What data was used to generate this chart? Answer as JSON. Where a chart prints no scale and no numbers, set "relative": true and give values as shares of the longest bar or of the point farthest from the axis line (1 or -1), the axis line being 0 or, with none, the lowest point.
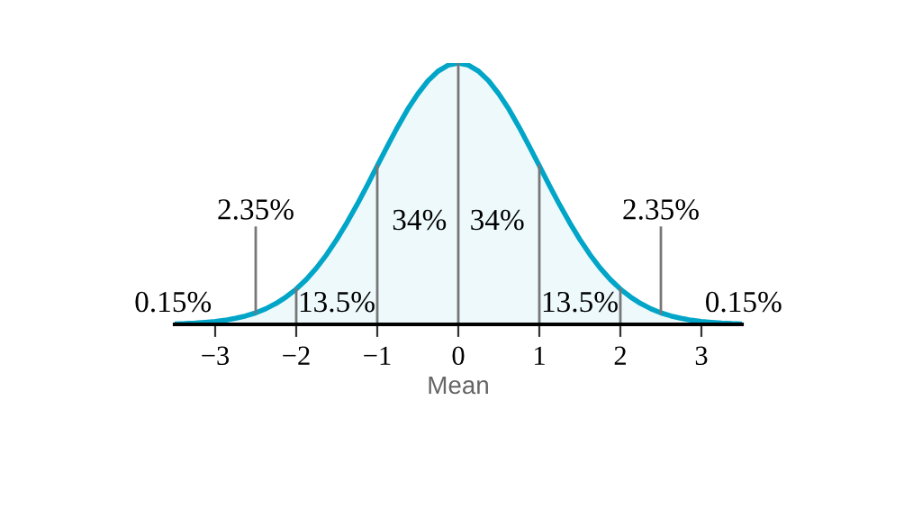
{
  "chart_data": {
    "type": "area",
    "relative": true,
    "xlabel": "Mean",
    "color": "#00a5c8",
    "x": [
      -3.5,
      -3.375,
      -3.25,
      -3.125,
      -3,
      -2.875,
      -2.75,
      -2.625,
      -2.5,
      -2.375,
      -2.25,
      -2.125,
      -2,
      -1.875,
      -1.75,
      -1.625,
      -1.5,
      -1.375,
      -1.25,
      -1.125,
      -1,
      -0.875,
      -0.75,
      -0.625,
      -0.5,
      -0.375,
      -0.25,
      -0.125,
      0,
      0.125,
      0.25,
      0.375,
      0.5,
      0.625,
      0.75,
      0.875,
      1,
      1.125,
      1.25,
      1.375,
      1.5,
      1.625,
      1.75,
      1.875,
      2,
      2.125,
      2.25,
      2.375,
      2.5,
      2.625,
      2.75,
      2.875,
      3,
      3.125,
      3.25,
      3.375,
      3.5
    ],
    "values": [
      0.002,
      0.003,
      0.005,
      0.008,
      0.011,
      0.016,
      0.023,
      0.032,
      0.044,
      0.06,
      0.08,
      0.105,
      0.135,
      0.172,
      0.216,
      0.267,
      0.325,
      0.389,
      0.458,
      0.531,
      0.607,
      0.682,
      0.755,
      0.823,
      0.882,
      0.932,
      0.969,
      0.992,
      1,
      0.992,
      0.969,
      0.932,
      0.882,
      0.823,
      0.755,
      0.682,
      0.607,
      0.531,
      0.458,
      0.389,
      0.325,
      0.267,
      0.216,
      0.172,
      0.135,
      0.105,
      0.08,
      0.06,
      0.044,
      0.032,
      0.023,
      0.016,
      0.011,
      0.008,
      0.005,
      0.003,
      0.002
    ],
    "xlim": [
      -3.5,
      3.5
    ],
    "xticks": [
      {
        "value": -3,
        "label": "−3"
      },
      {
        "value": -2,
        "label": "−2"
      },
      {
        "value": -1,
        "label": "−1"
      },
      0,
      1,
      2,
      3
    ],
    "ref_lines": [
      {
        "axis": "x",
        "value": -2
      },
      {
        "axis": "x",
        "value": -1
      },
      {
        "axis": "x",
        "value": 0
      },
      {
        "axis": "x",
        "value": 1
      },
      {
        "axis": "x",
        "value": 2
      }
    ],
    "annotations": [
      "0.15%",
      "2.35%",
      "13.5%",
      "34%",
      "34%",
      "13.5%",
      "2.35%",
      "0.15%"
    ],
    "grid": false
  }
}
